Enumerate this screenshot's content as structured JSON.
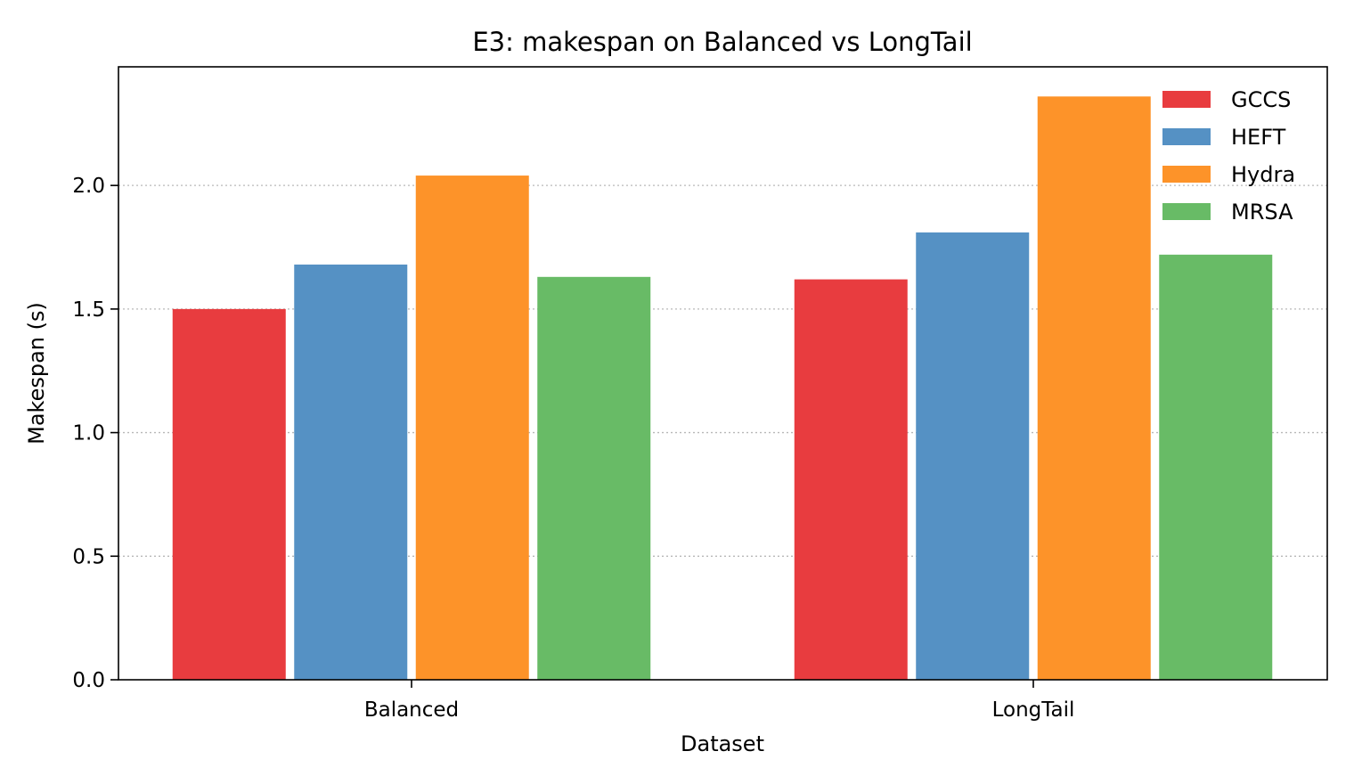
{
  "chart_data": {
    "type": "bar",
    "title": "E3: makespan on Balanced vs LongTail",
    "xlabel": "Dataset",
    "ylabel": "Makespan (s)",
    "categories": [
      "Balanced",
      "LongTail"
    ],
    "ylim": [
      0,
      2.48
    ],
    "yticks": [
      "0.0",
      "0.5",
      "1.0",
      "1.5",
      "2.0"
    ],
    "grid": "y-dotted",
    "legend_position": "top-right",
    "series": [
      {
        "name": "GCCS",
        "color": "#e83c3f",
        "values": [
          1.5,
          1.62
        ]
      },
      {
        "name": "HEFT",
        "color": "#5591c4",
        "values": [
          1.68,
          1.81
        ]
      },
      {
        "name": "Hydra",
        "color": "#fd9329",
        "values": [
          2.04,
          2.36
        ]
      },
      {
        "name": "MRSA",
        "color": "#68bb66",
        "values": [
          1.63,
          1.72
        ]
      }
    ]
  }
}
